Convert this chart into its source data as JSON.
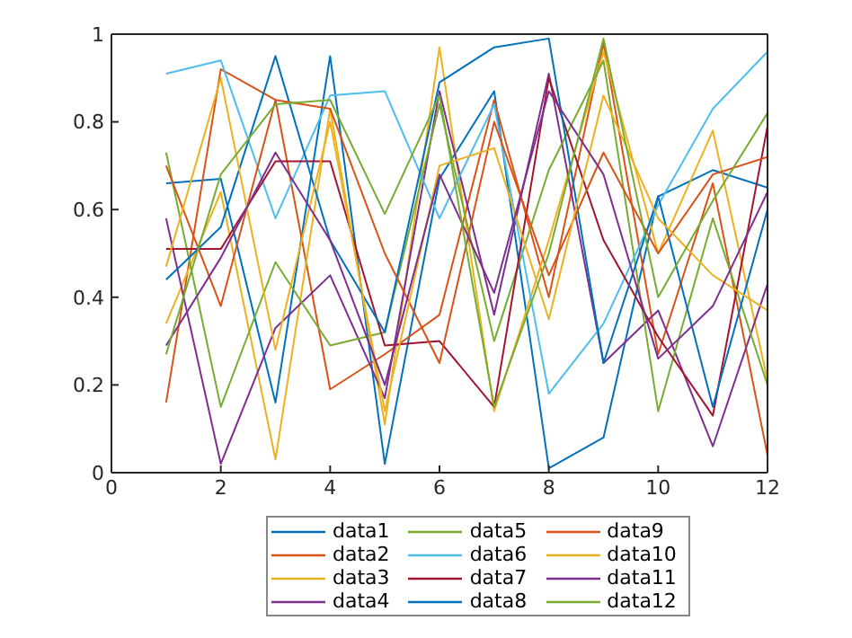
{
  "chart_data": {
    "type": "line",
    "x": [
      1,
      2,
      3,
      4,
      5,
      6,
      7,
      8,
      9,
      10,
      11,
      12
    ],
    "xlim": [
      0,
      12
    ],
    "xticks": [
      0,
      2,
      4,
      6,
      8,
      10,
      12
    ],
    "ylim": [
      0,
      1
    ],
    "yticks": [
      0,
      0.2,
      0.4,
      0.6,
      0.8,
      1
    ],
    "grid": false,
    "legend": "bottom",
    "marker": "none",
    "line_style": "solid",
    "series": [
      {
        "name": "data1",
        "color": "#0072bd",
        "values": [
          0.66,
          0.67,
          0.16,
          0.95,
          0.02,
          0.67,
          0.87,
          0.01,
          0.08,
          0.63,
          0.69,
          0.65
        ]
      },
      {
        "name": "data2",
        "color": "#d95319",
        "values": [
          0.16,
          0.92,
          0.85,
          0.19,
          0.27,
          0.36,
          0.85,
          0.4,
          0.98,
          0.27,
          0.66,
          0.04
        ]
      },
      {
        "name": "data3",
        "color": "#edb120",
        "values": [
          0.34,
          0.64,
          0.03,
          0.83,
          0.11,
          0.97,
          0.14,
          0.53,
          0.96,
          0.5,
          0.78,
          0.21
        ]
      },
      {
        "name": "data4",
        "color": "#7e2f8e",
        "values": [
          0.58,
          0.02,
          0.33,
          0.45,
          0.17,
          0.87,
          0.36,
          0.91,
          0.25,
          0.37,
          0.06,
          0.43
        ]
      },
      {
        "name": "data5",
        "color": "#77ac30",
        "values": [
          0.73,
          0.15,
          0.48,
          0.29,
          0.32,
          0.84,
          0.3,
          0.69,
          0.94,
          0.14,
          0.58,
          0.2
        ]
      },
      {
        "name": "data6",
        "color": "#4dbeee",
        "values": [
          0.91,
          0.94,
          0.58,
          0.86,
          0.87,
          0.58,
          0.84,
          0.18,
          0.34,
          0.61,
          0.83,
          0.96
        ]
      },
      {
        "name": "data7",
        "color": "#a2142f",
        "values": [
          0.51,
          0.51,
          0.71,
          0.71,
          0.29,
          0.3,
          0.15,
          0.9,
          0.53,
          0.31,
          0.13,
          0.79
        ]
      },
      {
        "name": "data8",
        "color": "#0072bd",
        "values": [
          0.44,
          0.56,
          0.95,
          0.53,
          0.32,
          0.89,
          0.97,
          0.99,
          0.25,
          0.63,
          0.15,
          0.6
        ]
      },
      {
        "name": "data9",
        "color": "#d95319",
        "values": [
          0.7,
          0.38,
          0.85,
          0.83,
          0.5,
          0.25,
          0.8,
          0.45,
          0.73,
          0.5,
          0.68,
          0.72
        ]
      },
      {
        "name": "data10",
        "color": "#edb120",
        "values": [
          0.47,
          0.9,
          0.28,
          0.8,
          0.14,
          0.7,
          0.74,
          0.35,
          0.86,
          0.58,
          0.45,
          0.37
        ]
      },
      {
        "name": "data11",
        "color": "#7e2f8e",
        "values": [
          0.29,
          0.49,
          0.73,
          0.53,
          0.2,
          0.68,
          0.41,
          0.87,
          0.68,
          0.26,
          0.38,
          0.64
        ]
      },
      {
        "name": "data12",
        "color": "#77ac30",
        "values": [
          0.27,
          0.68,
          0.84,
          0.85,
          0.59,
          0.86,
          0.15,
          0.5,
          0.99,
          0.4,
          0.62,
          0.82
        ]
      }
    ]
  }
}
